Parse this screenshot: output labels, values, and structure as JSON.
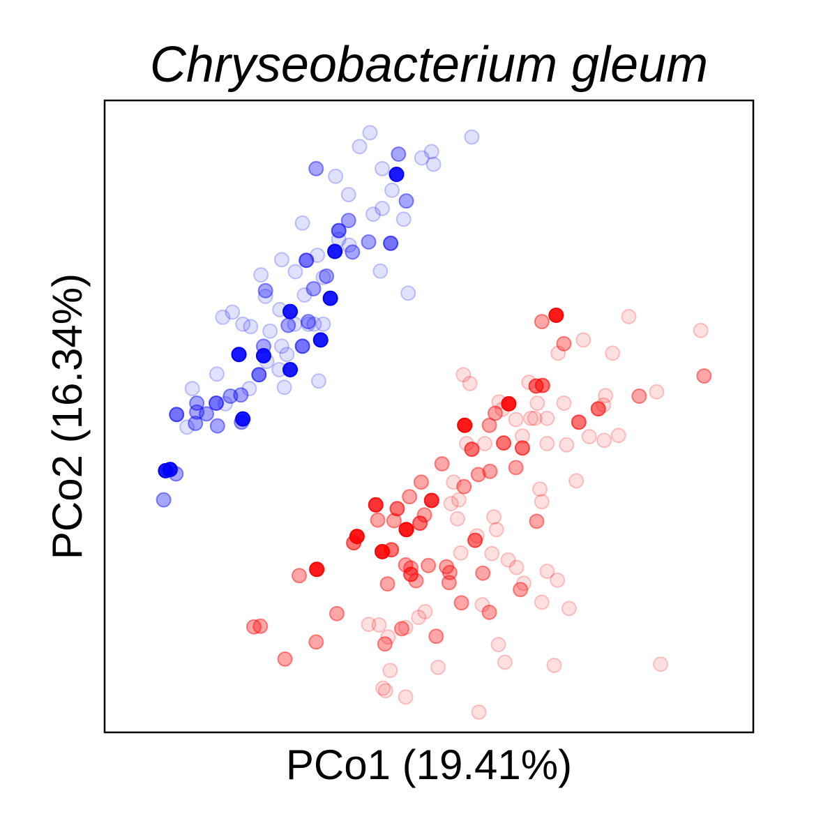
{
  "chart_data": {
    "type": "scatter",
    "title": "Chryseobacterium gleum",
    "xlabel": "PCo1 (19.41%)",
    "ylabel": "PCo2 (16.34%)",
    "xlim": [
      0,
      100
    ],
    "ylim": [
      0,
      100
    ],
    "x_ticks_shown": false,
    "y_ticks_shown": false,
    "grid": false,
    "legend": "none",
    "series": [
      {
        "color": "#0000ff",
        "points": [
          [
            40.9,
            94.9,
            0.12
          ],
          [
            56.6,
            94.2,
            0.12
          ],
          [
            39.3,
            92.7,
            0.12
          ],
          [
            50.4,
            91.9,
            0.12
          ],
          [
            48.9,
            90.9,
            0.12
          ],
          [
            50.7,
            89.9,
            0.12
          ],
          [
            42.8,
            89.2,
            0.12
          ],
          [
            35.6,
            88.0,
            0.12
          ],
          [
            37.6,
            85.1,
            0.12
          ],
          [
            44.3,
            85.8,
            0.12
          ],
          [
            42.8,
            82.9,
            0.12
          ],
          [
            41.4,
            82.0,
            0.12
          ],
          [
            46.1,
            81.2,
            0.12
          ],
          [
            30.5,
            80.6,
            0.12
          ],
          [
            36.1,
            78.0,
            0.12
          ],
          [
            37.7,
            77.1,
            0.12
          ],
          [
            27.3,
            74.8,
            0.12
          ],
          [
            32.8,
            75.5,
            0.12
          ],
          [
            29.4,
            72.9,
            0.12
          ],
          [
            33.7,
            72.0,
            0.12
          ],
          [
            24.1,
            72.4,
            0.12
          ],
          [
            30.8,
            69.2,
            0.12
          ],
          [
            24.8,
            69.0,
            0.12
          ],
          [
            27.0,
            66.9,
            0.12
          ],
          [
            19.7,
            66.5,
            0.12
          ],
          [
            21.3,
            64.6,
            0.12
          ],
          [
            33.7,
            64.6,
            0.12
          ],
          [
            29.3,
            64.6,
            0.12
          ],
          [
            31.4,
            64.6,
            0.12
          ],
          [
            18.2,
            65.7,
            0.12
          ],
          [
            22.5,
            64.2,
            0.12
          ],
          [
            27.3,
            61.1,
            0.12
          ],
          [
            28.1,
            59.8,
            0.12
          ],
          [
            25.0,
            58.7,
            0.12
          ],
          [
            26.9,
            57.4,
            0.12
          ],
          [
            33.0,
            55.6,
            0.12
          ],
          [
            27.7,
            54.6,
            0.12
          ],
          [
            13.5,
            54.4,
            0.12
          ],
          [
            17.3,
            56.7,
            0.12
          ],
          [
            18.6,
            52.0,
            0.12
          ],
          [
            12.7,
            48.3,
            0.12
          ],
          [
            22.3,
            54.4,
            0.12
          ],
          [
            46.8,
            69.5,
            0.12
          ],
          [
            42.5,
            73.0,
            0.12
          ],
          [
            32.3,
            64.6,
            0.12
          ],
          [
            25.5,
            63.5,
            0.12
          ],
          [
            37.6,
            81.0,
            0.35
          ],
          [
            21.0,
            53.4,
            0.35
          ],
          [
            19.4,
            53.2,
            0.35
          ],
          [
            14.2,
            52.1,
            0.35
          ],
          [
            9.1,
            36.8,
            0.35
          ],
          [
            11.0,
            40.9,
            0.35
          ],
          [
            24.8,
            69.9,
            0.35
          ],
          [
            32.2,
            70.2,
            0.35
          ],
          [
            28.3,
            64.4,
            0.35
          ],
          [
            40.7,
            77.6,
            0.35
          ],
          [
            38.2,
            76.0,
            0.35
          ],
          [
            45.3,
            91.5,
            0.35
          ],
          [
            14.2,
            50.7,
            0.35
          ],
          [
            15.7,
            50.4,
            0.35
          ],
          [
            17.4,
            48.5,
            0.35
          ],
          [
            21.1,
            49.1,
            0.35
          ],
          [
            24.5,
            61.1,
            0.35
          ],
          [
            31.4,
            65.0,
            0.35
          ],
          [
            34.2,
            72.2,
            0.35
          ],
          [
            46.5,
            84.1,
            0.35
          ],
          [
            14.0,
            48.9,
            0.35
          ],
          [
            32.6,
            89.2,
            0.35
          ],
          [
            44.1,
            77.4,
            0.55
          ],
          [
            31.1,
            74.7,
            0.55
          ],
          [
            36.1,
            79.4,
            0.55
          ],
          [
            30.5,
            61.1,
            0.55
          ],
          [
            23.8,
            56.6,
            0.55
          ],
          [
            11.1,
            50.3,
            0.55
          ],
          [
            17.2,
            52.1,
            0.55
          ],
          [
            28.6,
            66.6,
            0.9
          ],
          [
            24.5,
            59.6,
            0.9
          ],
          [
            33.3,
            62.1,
            0.9
          ],
          [
            34.8,
            68.7,
            0.9
          ],
          [
            20.7,
            59.8,
            0.9
          ],
          [
            28.6,
            57.4,
            0.9
          ],
          [
            21.3,
            49.6,
            0.9
          ],
          [
            10.1,
            41.6,
            0.9
          ],
          [
            9.4,
            41.4,
            0.9
          ],
          [
            35.5,
            76.1,
            0.9
          ],
          [
            45.0,
            88.3,
            0.9
          ]
        ]
      },
      {
        "color": "#ff0000",
        "points": [
          [
            80.8,
            65.8,
            0.12
          ],
          [
            91.9,
            63.6,
            0.12
          ],
          [
            69.9,
            60.0,
            0.12
          ],
          [
            73.8,
            62.1,
            0.12
          ],
          [
            78.3,
            60.0,
            0.12
          ],
          [
            55.3,
            56.6,
            0.12
          ],
          [
            56.3,
            55.2,
            0.12
          ],
          [
            60.8,
            52.3,
            0.12
          ],
          [
            65.4,
            55.4,
            0.12
          ],
          [
            61.3,
            51.1,
            0.12
          ],
          [
            65.7,
            49.7,
            0.12
          ],
          [
            66.3,
            49.7,
            0.12
          ],
          [
            63.4,
            49.5,
            0.12
          ],
          [
            68.2,
            49.7,
            0.12
          ],
          [
            70.8,
            52.1,
            0.12
          ],
          [
            66.7,
            52.1,
            0.12
          ],
          [
            85.1,
            53.9,
            0.12
          ],
          [
            79.2,
            47.0,
            0.12
          ],
          [
            76.9,
            51.8,
            0.12
          ],
          [
            77.2,
            53.3,
            0.12
          ],
          [
            68.2,
            45.7,
            0.12
          ],
          [
            74.7,
            46.8,
            0.12
          ],
          [
            55.8,
            45.7,
            0.12
          ],
          [
            64.4,
            46.9,
            0.12
          ],
          [
            71.2,
            45.5,
            0.12
          ],
          [
            77.0,
            46.2,
            0.12
          ],
          [
            58.6,
            45.7,
            0.12
          ],
          [
            72.7,
            39.8,
            0.12
          ],
          [
            67.1,
            38.5,
            0.12
          ],
          [
            67.4,
            36.5,
            0.12
          ],
          [
            54.6,
            36.8,
            0.12
          ],
          [
            53.8,
            39.6,
            0.12
          ],
          [
            53.4,
            36.2,
            0.12
          ],
          [
            60.0,
            34.1,
            0.12
          ],
          [
            60.4,
            32.1,
            0.12
          ],
          [
            54.4,
            33.8,
            0.12
          ],
          [
            57.4,
            31.1,
            0.12
          ],
          [
            54.9,
            28.4,
            0.12
          ],
          [
            59.7,
            28.3,
            0.12
          ],
          [
            63.5,
            26.1,
            0.12
          ],
          [
            68.2,
            25.5,
            0.12
          ],
          [
            69.8,
            24.1,
            0.12
          ],
          [
            64.6,
            23.6,
            0.12
          ],
          [
            58.2,
            20.2,
            0.12
          ],
          [
            49.4,
            19.1,
            0.12
          ],
          [
            40.7,
            17.1,
            0.12
          ],
          [
            42.3,
            17.0,
            0.12
          ],
          [
            46.4,
            16.6,
            0.12
          ],
          [
            43.7,
            15.1,
            0.12
          ],
          [
            60.7,
            13.9,
            0.12
          ],
          [
            67.4,
            20.6,
            0.12
          ],
          [
            71.6,
            19.6,
            0.12
          ],
          [
            61.7,
            11.1,
            0.12
          ],
          [
            69.3,
            10.6,
            0.12
          ],
          [
            51.4,
            10.3,
            0.12
          ],
          [
            44.0,
            9.8,
            0.12
          ],
          [
            42.9,
            7.0,
            0.12
          ],
          [
            43.3,
            6.6,
            0.12
          ],
          [
            46.4,
            5.6,
            0.12
          ],
          [
            57.7,
            3.2,
            0.12
          ],
          [
            85.7,
            10.8,
            0.12
          ],
          [
            62.2,
            27.3,
            0.12
          ],
          [
            48.4,
            18.2,
            0.12
          ],
          [
            82.4,
            53.2,
            0.35
          ],
          [
            92.4,
            56.4,
            0.35
          ],
          [
            70.8,
            61.5,
            0.35
          ],
          [
            67.4,
            65.0,
            0.35
          ],
          [
            60.2,
            50.5,
            0.35
          ],
          [
            63.4,
            41.9,
            0.35
          ],
          [
            59.4,
            41.3,
            0.35
          ],
          [
            57.6,
            40.8,
            0.35
          ],
          [
            55.4,
            38.9,
            0.35
          ],
          [
            52.0,
            42.5,
            0.35
          ],
          [
            48.8,
            39.6,
            0.35
          ],
          [
            42.1,
            33.6,
            0.35
          ],
          [
            49.9,
            26.4,
            0.35
          ],
          [
            46.4,
            26.5,
            0.35
          ],
          [
            48.0,
            24.0,
            0.35
          ],
          [
            58.3,
            25.2,
            0.35
          ],
          [
            53.1,
            23.7,
            0.35
          ],
          [
            55.0,
            20.5,
            0.35
          ],
          [
            35.8,
            18.8,
            0.35
          ],
          [
            32.6,
            14.3,
            0.35
          ],
          [
            51.1,
            15.2,
            0.35
          ],
          [
            24.0,
            16.8,
            0.35
          ],
          [
            44.6,
            33.5,
            0.35
          ],
          [
            47.2,
            26.0,
            0.35
          ],
          [
            30.0,
            24.8,
            0.35
          ],
          [
            27.8,
            11.6,
            0.35
          ],
          [
            43.2,
            14.0,
            0.35
          ],
          [
            49.3,
            34.4,
            0.35
          ],
          [
            53.2,
            25.3,
            0.35
          ],
          [
            45.8,
            16.4,
            0.35
          ],
          [
            59.3,
            19.0,
            0.35
          ],
          [
            66.6,
            33.4,
            0.35
          ],
          [
            59.3,
            48.6,
            0.35
          ],
          [
            43.6,
            23.5,
            0.35
          ],
          [
            23.0,
            16.7,
            0.35
          ],
          [
            64.1,
            22.6,
            0.35
          ],
          [
            52.7,
            26.2,
            0.35
          ],
          [
            47.0,
            37.3,
            0.35
          ],
          [
            56.6,
            44.8,
            0.55
          ],
          [
            61.5,
            45.8,
            0.55
          ],
          [
            57.1,
            30.4,
            0.55
          ],
          [
            67.5,
            54.9,
            0.55
          ],
          [
            76.1,
            51.2,
            0.55
          ],
          [
            66.5,
            54.8,
            0.55
          ],
          [
            73.1,
            49.1,
            0.55
          ],
          [
            64.4,
            45.0,
            0.55
          ],
          [
            45.1,
            35.4,
            0.55
          ],
          [
            48.6,
            33.1,
            0.55
          ],
          [
            44.2,
            28.9,
            0.55
          ],
          [
            47.2,
            25.0,
            0.55
          ],
          [
            38.4,
            30.0,
            0.55
          ],
          [
            41.8,
            36.0,
            0.8
          ],
          [
            50.4,
            36.7,
            0.8
          ],
          [
            55.5,
            48.6,
            0.9
          ],
          [
            62.3,
            52.0,
            0.9
          ],
          [
            69.6,
            66.0,
            0.9
          ],
          [
            46.5,
            32.1,
            0.9
          ],
          [
            32.7,
            25.8,
            0.9
          ],
          [
            38.9,
            31.0,
            0.9
          ],
          [
            42.8,
            28.6,
            0.9
          ]
        ]
      }
    ]
  }
}
